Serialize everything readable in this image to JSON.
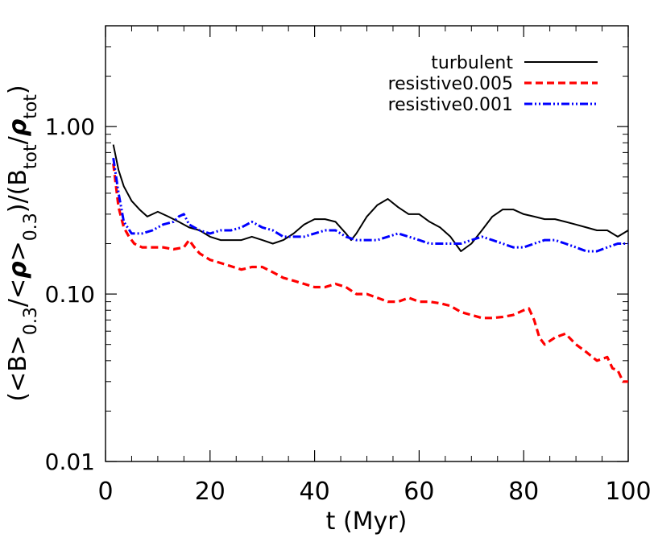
{
  "chart_data": {
    "type": "line",
    "title": "",
    "xlabel": "t (Myr)",
    "ylabel": {
      "parts": [
        "(<B>",
        "0.3",
        "/<",
        "ρ",
        ">",
        "0.3",
        ")/(B",
        "tot",
        "/",
        "ρ",
        "tot",
        ")"
      ]
    },
    "xlim": [
      0,
      100
    ],
    "ylim": [
      0.01,
      4.0
    ],
    "yscale": "log",
    "xticks": [
      0,
      20,
      40,
      60,
      80,
      100
    ],
    "xtick_labels": [
      "0",
      "20",
      "40",
      "60",
      "80",
      "100"
    ],
    "yticks": [
      0.01,
      0.1,
      1.0
    ],
    "ytick_labels": [
      "0.01",
      "0.10",
      "1.00"
    ],
    "grid": false,
    "legend_position": "top-right",
    "series": [
      {
        "name": "turbulent",
        "color": "#000000",
        "style": "solid",
        "x": [
          1.5,
          2.5,
          3.5,
          5,
          6.5,
          8,
          10,
          12,
          14,
          16,
          18,
          20,
          22,
          24,
          26,
          28,
          30,
          32,
          34,
          36,
          38,
          40,
          42,
          44,
          46,
          47,
          48,
          50,
          52,
          54,
          56,
          58,
          60,
          62,
          64,
          66,
          68,
          70,
          72,
          74,
          76,
          78,
          80,
          82,
          84,
          86,
          88,
          90,
          92,
          94,
          96,
          98,
          100
        ],
        "y": [
          0.78,
          0.55,
          0.44,
          0.36,
          0.32,
          0.29,
          0.31,
          0.29,
          0.27,
          0.25,
          0.24,
          0.22,
          0.21,
          0.21,
          0.21,
          0.22,
          0.21,
          0.2,
          0.21,
          0.23,
          0.26,
          0.28,
          0.28,
          0.27,
          0.23,
          0.21,
          0.23,
          0.29,
          0.34,
          0.37,
          0.33,
          0.3,
          0.3,
          0.27,
          0.25,
          0.22,
          0.18,
          0.2,
          0.24,
          0.29,
          0.32,
          0.32,
          0.3,
          0.29,
          0.28,
          0.28,
          0.27,
          0.26,
          0.25,
          0.24,
          0.24,
          0.22,
          0.24
        ]
      },
      {
        "name": "resistive0.005",
        "color": "#ff0000",
        "style": "dashed",
        "x": [
          1.5,
          2.5,
          3.5,
          4.5,
          5.5,
          7,
          9,
          11,
          13,
          15,
          16,
          17,
          18,
          20,
          23,
          26,
          28,
          30,
          32,
          34,
          36,
          38,
          40,
          42,
          44,
          46,
          48,
          50,
          52,
          54,
          56,
          58,
          60,
          62,
          64,
          66,
          68,
          70,
          72,
          74,
          76,
          78,
          80,
          81,
          82,
          83,
          84,
          86,
          88,
          90,
          92,
          94,
          96,
          97,
          98,
          99,
          100
        ],
        "y": [
          0.6,
          0.33,
          0.25,
          0.22,
          0.2,
          0.19,
          0.19,
          0.19,
          0.185,
          0.19,
          0.21,
          0.19,
          0.175,
          0.16,
          0.15,
          0.14,
          0.145,
          0.145,
          0.135,
          0.125,
          0.12,
          0.115,
          0.11,
          0.11,
          0.115,
          0.11,
          0.1,
          0.1,
          0.095,
          0.09,
          0.09,
          0.095,
          0.09,
          0.09,
          0.088,
          0.085,
          0.078,
          0.075,
          0.072,
          0.072,
          0.073,
          0.075,
          0.08,
          0.082,
          0.07,
          0.055,
          0.05,
          0.055,
          0.058,
          0.05,
          0.045,
          0.04,
          0.042,
          0.036,
          0.035,
          0.03,
          0.03
        ]
      },
      {
        "name": "resistive0.001",
        "color": "#0000ff",
        "style": "dash-dot-dot",
        "x": [
          1.5,
          2.5,
          3.5,
          5,
          7,
          9,
          11,
          13,
          14,
          15,
          16,
          17,
          18,
          20,
          22,
          24,
          26,
          28,
          30,
          32,
          34,
          36,
          38,
          40,
          42,
          44,
          46,
          48,
          50,
          52,
          54,
          56,
          58,
          60,
          62,
          64,
          66,
          68,
          70,
          72,
          74,
          76,
          78,
          80,
          82,
          84,
          86,
          88,
          90,
          92,
          94,
          96,
          98,
          100
        ],
        "y": [
          0.65,
          0.4,
          0.27,
          0.23,
          0.23,
          0.24,
          0.26,
          0.27,
          0.29,
          0.3,
          0.26,
          0.25,
          0.24,
          0.23,
          0.24,
          0.24,
          0.25,
          0.27,
          0.25,
          0.24,
          0.22,
          0.22,
          0.22,
          0.23,
          0.24,
          0.24,
          0.22,
          0.21,
          0.21,
          0.21,
          0.22,
          0.23,
          0.22,
          0.21,
          0.2,
          0.2,
          0.2,
          0.2,
          0.21,
          0.22,
          0.21,
          0.2,
          0.19,
          0.19,
          0.2,
          0.21,
          0.21,
          0.2,
          0.19,
          0.18,
          0.18,
          0.19,
          0.2,
          0.2
        ]
      }
    ]
  }
}
